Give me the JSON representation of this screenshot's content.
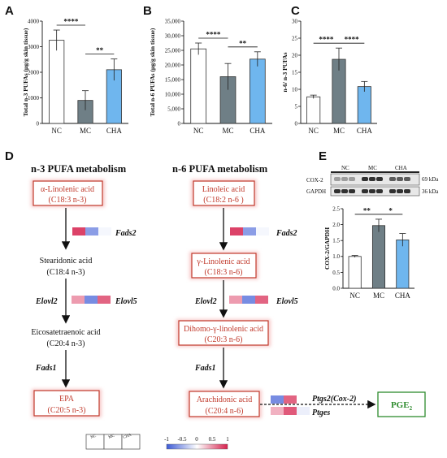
{
  "panels": {
    "A": "A",
    "B": "B",
    "C": "C",
    "D": "D",
    "E": "E"
  },
  "colors": {
    "NC": "#ffffff",
    "MC": "#6f7f86",
    "CHA": "#6fb6ee",
    "red": "#c0392b",
    "green": "#2e8b2e"
  },
  "chart_data": [
    {
      "id": "A",
      "type": "bar",
      "ylabel": "Total n-3 PUFAs (μg/g skin tissue)",
      "categories": [
        "NC",
        "MC",
        "CHA"
      ],
      "values": [
        3250,
        900,
        2100
      ],
      "errors": [
        400,
        380,
        420
      ],
      "ylim": [
        0,
        4000
      ],
      "yticks": [
        "0",
        "1000",
        "2000",
        "3000",
        "4000"
      ],
      "significance": [
        {
          "from": 0,
          "to": 1,
          "label": "****"
        },
        {
          "from": 1,
          "to": 2,
          "label": "**"
        }
      ]
    },
    {
      "id": "B",
      "type": "bar",
      "ylabel": "Total n-6 PUFAs (μg/g skin tissue)",
      "categories": [
        "NC",
        "MC",
        "CHA"
      ],
      "values": [
        25500,
        16000,
        22000
      ],
      "errors": [
        2000,
        4500,
        2500
      ],
      "ylim": [
        0,
        35000
      ],
      "yticks": [
        "0",
        "5,000",
        "10,000",
        "15,000",
        "20,000",
        "25,000",
        "30,000",
        "35,000"
      ],
      "significance": [
        {
          "from": 0,
          "to": 1,
          "label": "****"
        },
        {
          "from": 1,
          "to": 2,
          "label": "**"
        }
      ]
    },
    {
      "id": "C",
      "type": "bar",
      "ylabel": "n-6/ n-3 PUFAs",
      "categories": [
        "NC",
        "MC",
        "CHA"
      ],
      "values": [
        7.8,
        18.8,
        10.8
      ],
      "errors": [
        0.5,
        3.3,
        1.5
      ],
      "ylim": [
        0,
        30
      ],
      "yticks": [
        "0",
        "5",
        "10",
        "15",
        "20",
        "25",
        "30"
      ],
      "significance": [
        {
          "from": 0,
          "to": 1,
          "label": "****"
        },
        {
          "from": 1,
          "to": 2,
          "label": "****"
        }
      ]
    },
    {
      "id": "E",
      "type": "bar",
      "ylabel": "COX-2/GAPDH",
      "categories": [
        "NC",
        "MC",
        "CHA"
      ],
      "values": [
        1.0,
        1.97,
        1.52
      ],
      "errors": [
        0.03,
        0.2,
        0.2
      ],
      "ylim": [
        0,
        2.5
      ],
      "yticks": [
        "0.0",
        "0.5",
        "1.0",
        "1.5",
        "2.0",
        "2.5"
      ],
      "significance": [
        {
          "from": 0,
          "to": 1,
          "label": "**"
        },
        {
          "from": 1,
          "to": 2,
          "label": "*"
        }
      ]
    }
  ],
  "blot": {
    "lanes": [
      "NC",
      "MC",
      "CHA"
    ],
    "rows": [
      {
        "label": "COX-2",
        "kda": "69 kDa"
      },
      {
        "label": "GAPDH",
        "kda": "36 kDa"
      }
    ]
  },
  "pathway": {
    "n3_title": "n-3 PUFA metabolism",
    "n6_title": "n-6 PUFA metabolism",
    "n3": [
      {
        "name": "α-Linolenic acid",
        "formula": "(C18:3 n-3)"
      },
      {
        "name": "Stearidonic acid",
        "formula": "(C18:4 n-3)"
      },
      {
        "name": "Eicosatetraenoic acid",
        "formula": "(C20:4 n-3)"
      },
      {
        "name": "EPA",
        "formula": "(C20:5 n-3)"
      }
    ],
    "n6": [
      {
        "name": "Linoleic acid",
        "formula": "(C18:2 n-6 )"
      },
      {
        "name": "γ-Linolenic acid",
        "formula": "(C18:3 n-6)"
      },
      {
        "name": "Dihomo-γ-linolenic acid",
        "formula": "(C20:3 n-6)"
      },
      {
        "name": "Arachidonic acid",
        "formula": "(C20:4 n-6)"
      }
    ],
    "enzymes": {
      "fads2_n3": "Fads2",
      "elovl2_n3": "Elovl2",
      "elovl5_n3": "Elovl5",
      "fads1_n3": "Fads1",
      "fads2_n6": "Fads2",
      "elovl2_n6": "Elovl2",
      "elovl5_n6": "Elovl5",
      "fads1_n6": "Fads1",
      "ptgs2": "Ptgs2(Cox-2)",
      "ptges": "Ptges"
    },
    "product": "PGE",
    "product_sub": "2",
    "heat_values": {
      "fads2_n3": [
        0.85,
        -0.6,
        -0.05
      ],
      "elovl_n3": [
        0.45,
        -0.7,
        0.7
      ],
      "fads2_n6": [
        0.85,
        -0.6,
        -0.05
      ],
      "elovl_n6": [
        0.45,
        -0.7,
        0.7
      ],
      "ptgs2": [
        -0.7,
        0.7,
        0.0
      ],
      "ptges": [
        0.35,
        0.75,
        -0.1
      ]
    }
  },
  "legend": {
    "groups": [
      "NC",
      "MC",
      "CHA"
    ],
    "scale_labels": [
      "-1",
      "-0.5",
      "0",
      "0.5",
      "1"
    ]
  }
}
